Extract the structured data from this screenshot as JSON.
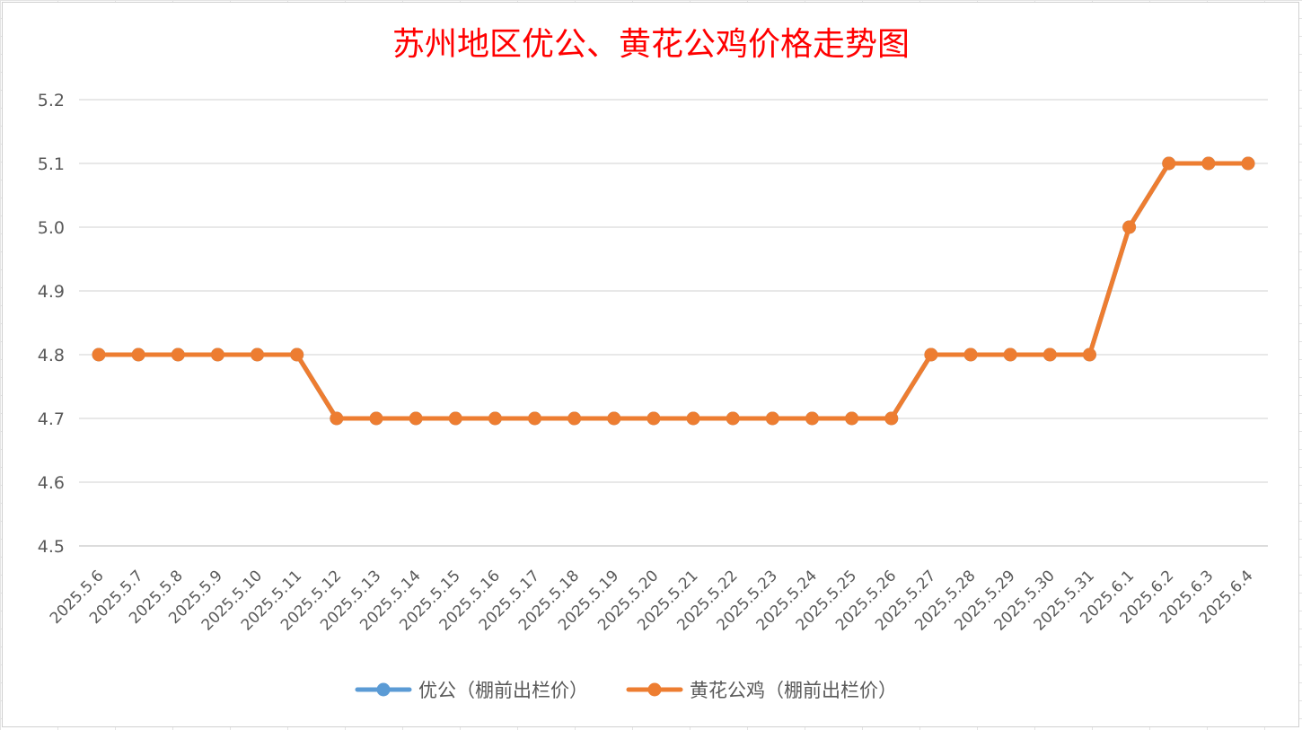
{
  "chart_data": {
    "type": "line",
    "title": "苏州地区优公、黄花公鸡价格走势图",
    "xlabel": "",
    "ylabel": "",
    "categories": [
      "2025.5.6",
      "2025.5.7",
      "2025.5.8",
      "2025.5.9",
      "2025.5.10",
      "2025.5.11",
      "2025.5.12",
      "2025.5.13",
      "2025.5.14",
      "2025.5.15",
      "2025.5.16",
      "2025.5.17",
      "2025.5.18",
      "2025.5.19",
      "2025.5.20",
      "2025.5.21",
      "2025.5.22",
      "2025.5.23",
      "2025.5.24",
      "2025.5.25",
      "2025.5.26",
      "2025.5.27",
      "2025.5.28",
      "2025.5.29",
      "2025.5.30",
      "2025.5.31",
      "2025.6.1",
      "2025.6.2",
      "2025.6.3",
      "2025.6.4"
    ],
    "yticks": [
      "4.5",
      "4.6",
      "4.7",
      "4.8",
      "4.9",
      "5.0",
      "5.1",
      "5.2"
    ],
    "ylim": [
      4.5,
      5.2
    ],
    "grid": true,
    "legend_position": "bottom",
    "series": [
      {
        "name": "优公（棚前出栏价）",
        "color": "#5b9bd5",
        "values": [
          4.8,
          4.8,
          4.8,
          4.8,
          4.8,
          4.8,
          4.7,
          4.7,
          4.7,
          4.7,
          4.7,
          4.7,
          4.7,
          4.7,
          4.7,
          4.7,
          4.7,
          4.7,
          4.7,
          4.7,
          4.7,
          4.8,
          4.8,
          4.8,
          4.8,
          4.8,
          5.0,
          5.1,
          5.1,
          5.1
        ]
      },
      {
        "name": "黄花公鸡（棚前出栏价）",
        "color": "#ed7d31",
        "values": [
          4.8,
          4.8,
          4.8,
          4.8,
          4.8,
          4.8,
          4.7,
          4.7,
          4.7,
          4.7,
          4.7,
          4.7,
          4.7,
          4.7,
          4.7,
          4.7,
          4.7,
          4.7,
          4.7,
          4.7,
          4.7,
          4.8,
          4.8,
          4.8,
          4.8,
          4.8,
          5.0,
          5.1,
          5.1,
          5.1
        ]
      }
    ]
  }
}
